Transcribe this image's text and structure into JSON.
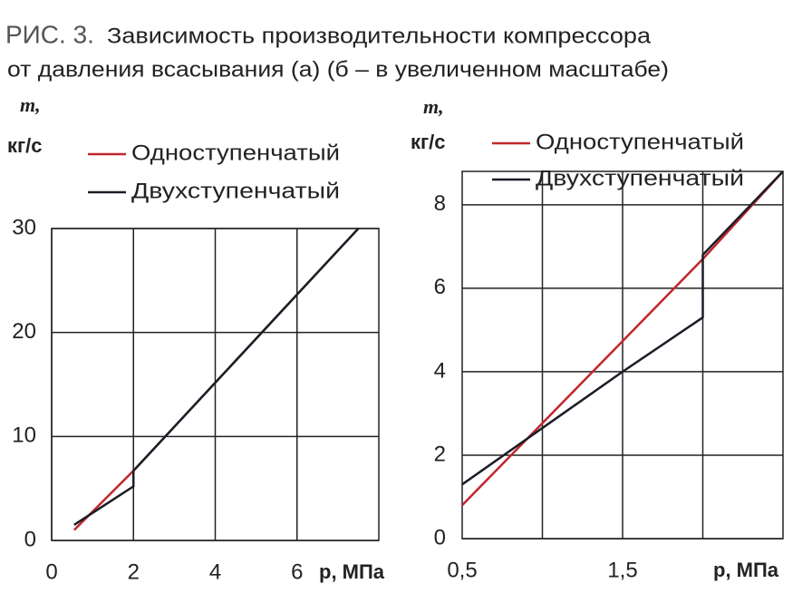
{
  "caption": {
    "label": "РИС. 3.",
    "lines": [
      "Зависимость производительности компрессора",
      "от давления всасывания (а) (б – в увеличенном масштабе)"
    ]
  },
  "chart_data": [
    {
      "type": "line",
      "y_label_symbol": "m,",
      "y_label_unit": "кг/с",
      "x_label": "p, МПа",
      "xlim": [
        0,
        8
      ],
      "xticks": [
        0,
        2,
        4,
        6
      ],
      "ylim": [
        0,
        30
      ],
      "yticks": [
        0,
        10,
        20,
        30
      ],
      "grid": true,
      "legend": "upper left",
      "series": [
        {
          "name": "Одноступенчатый",
          "color": "#c0272d",
          "x": [
            0.55,
            2,
            7.5
          ],
          "values": [
            1.0,
            6.7,
            30
          ]
        },
        {
          "name": "Двухступенчатый",
          "color": "#1c1c28",
          "x": [
            0.55,
            2,
            2,
            7.5
          ],
          "values": [
            1.5,
            5.2,
            6.7,
            30
          ]
        }
      ]
    },
    {
      "type": "line",
      "y_label_symbol": "m,",
      "y_label_unit": "кг/с",
      "x_label": "p, МПа",
      "xlim": [
        0.5,
        2.5
      ],
      "xticks": [
        {
          "value": 0.5,
          "label": "0,5"
        },
        {
          "value": 1.5,
          "label": "1,5"
        }
      ],
      "xgrid": [
        1,
        1.5,
        2
      ],
      "ylim": [
        0,
        8.8
      ],
      "yticks": [
        0,
        2,
        4,
        6,
        8
      ],
      "grid": true,
      "legend": "upper left",
      "series": [
        {
          "name": "Одноступенчатый",
          "color": "#c0272d",
          "x": [
            0.5,
            2,
            2.5
          ],
          "values": [
            0.8,
            6.7,
            8.8
          ]
        },
        {
          "name": "Двухступенчатый",
          "color": "#1c1c28",
          "x": [
            0.5,
            1.5,
            2,
            2,
            2.5
          ],
          "values": [
            1.3,
            4.0,
            5.3,
            6.8,
            8.8
          ]
        }
      ]
    }
  ]
}
